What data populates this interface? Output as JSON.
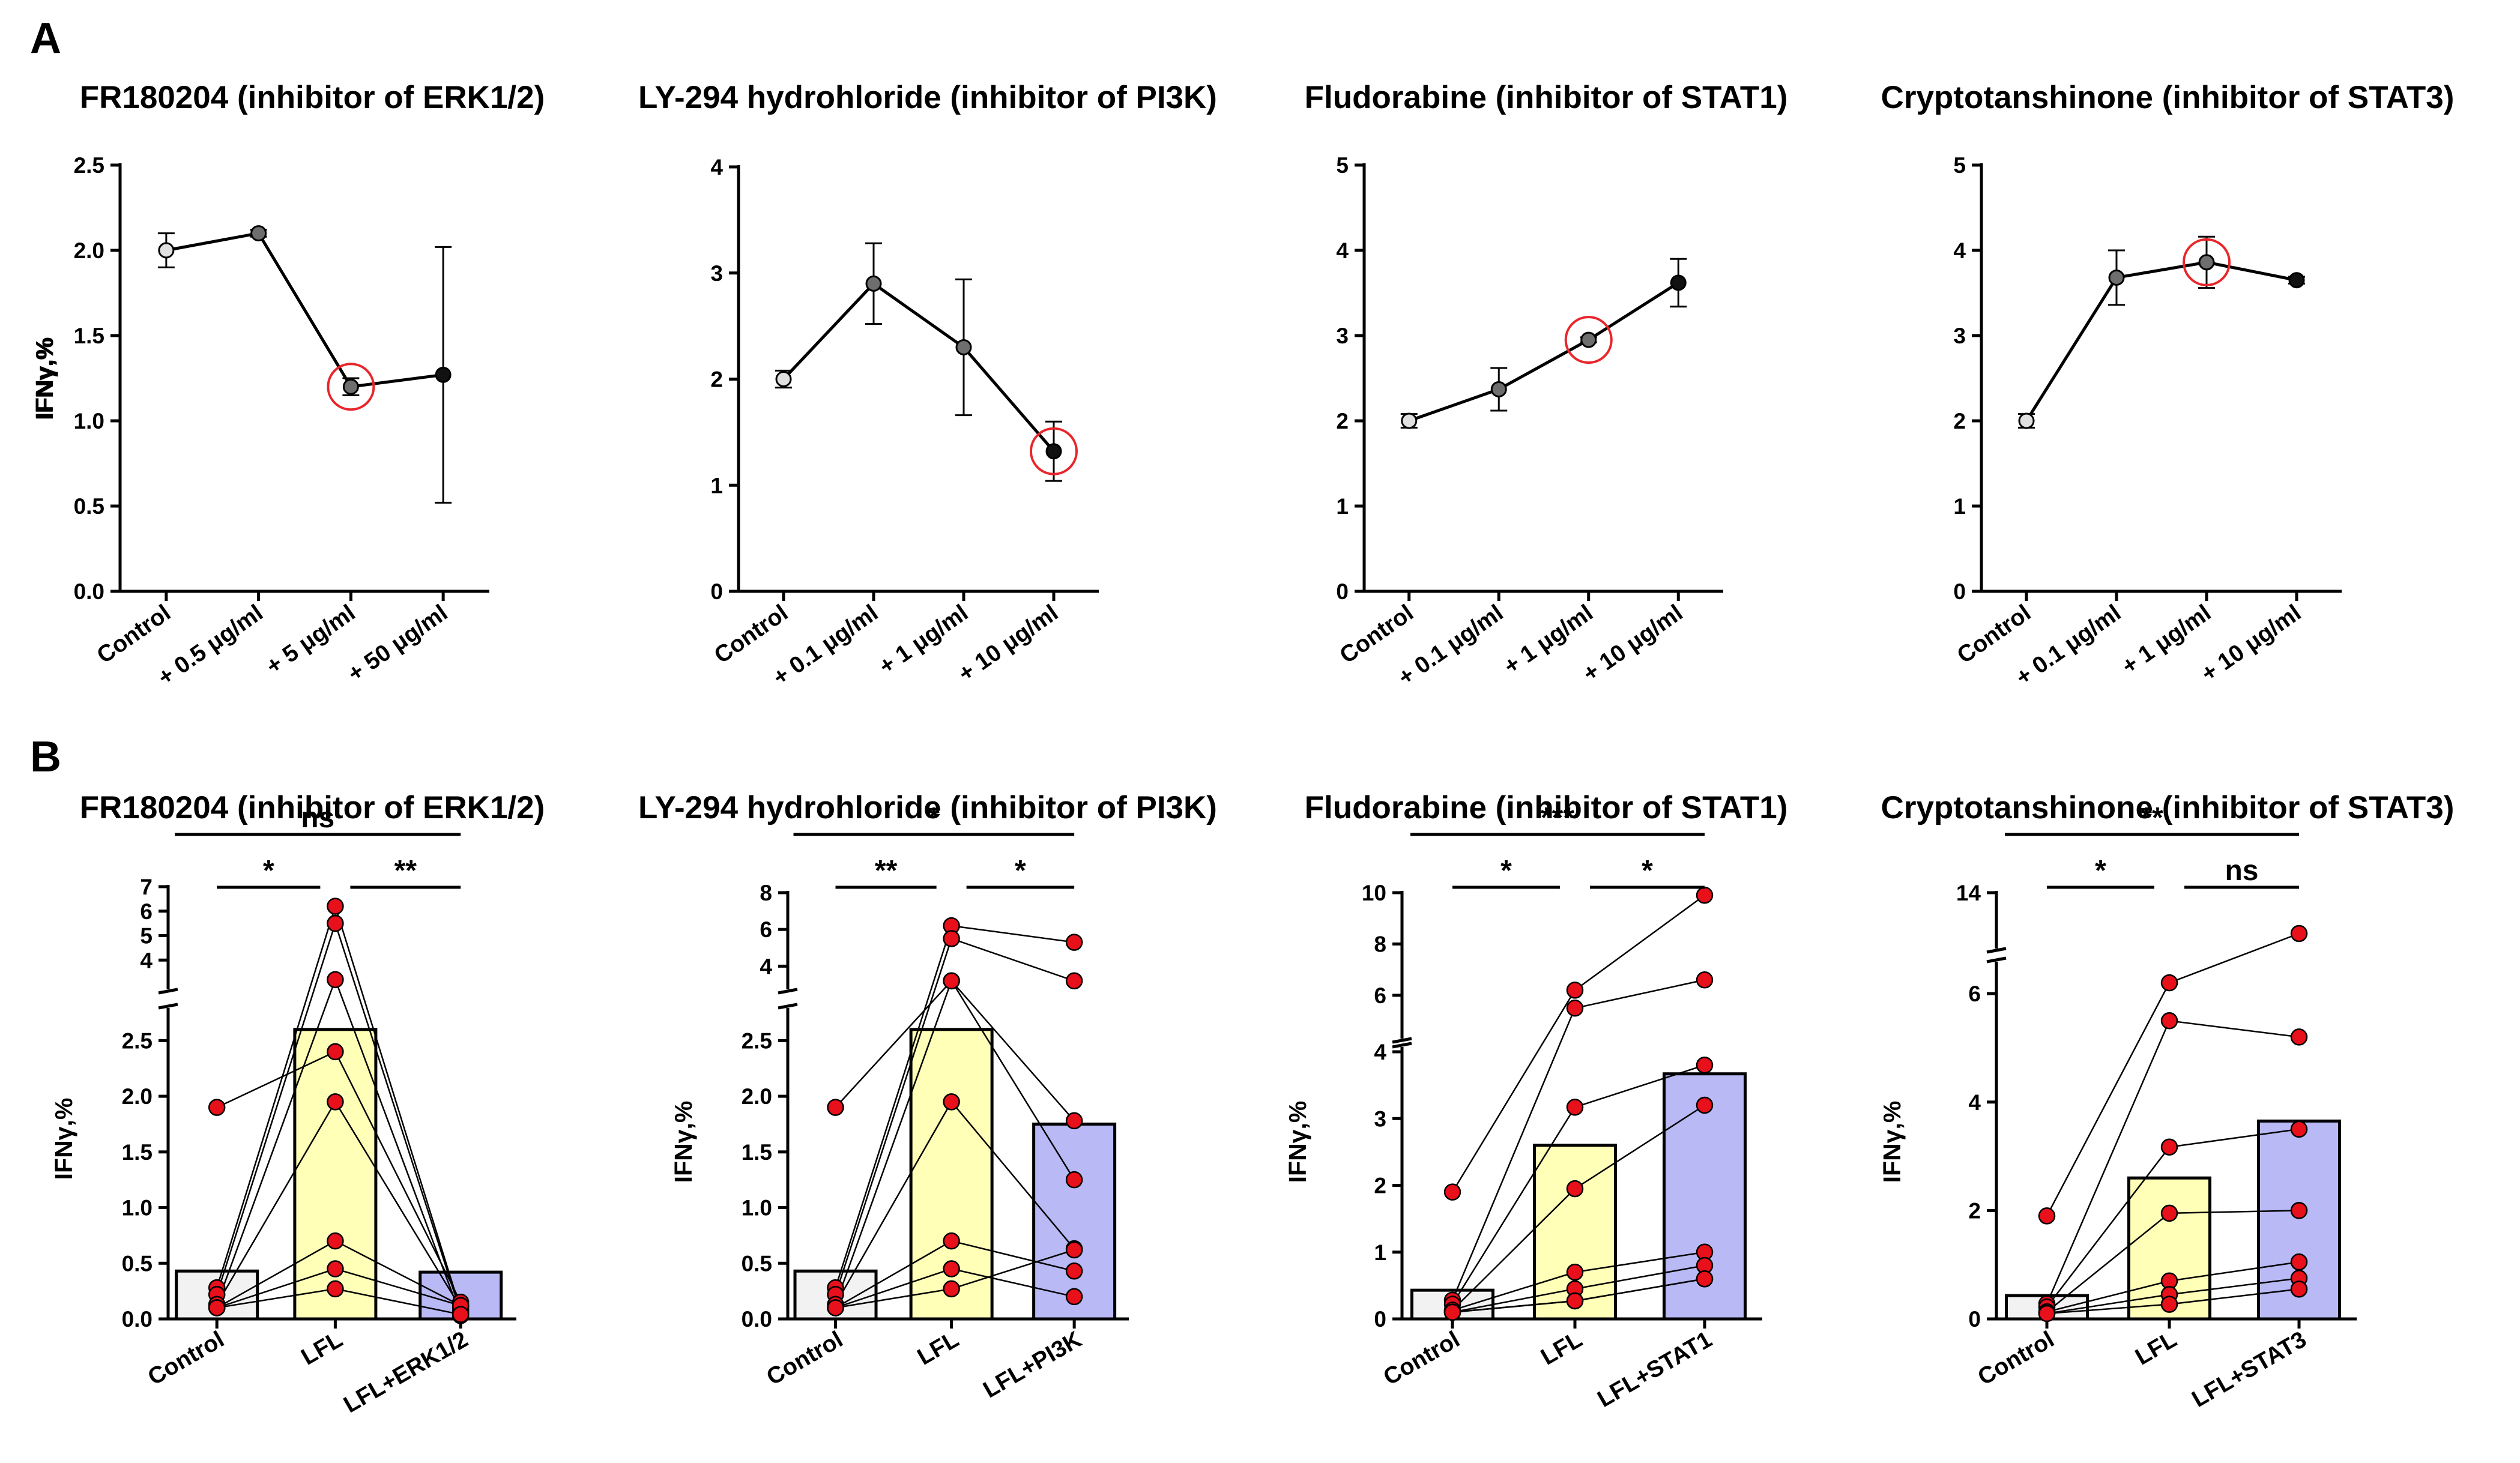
{
  "panel_labels": [
    "A",
    "B"
  ],
  "colors": {
    "marker_control": "#e0e0e0",
    "marker_mid": "#6e6e6e",
    "marker_high": "#111111",
    "highlight_circle": "#e8262b",
    "bar_control": "#f2f2f2",
    "bar_lfl": "#ffffb8",
    "bar_inhibitor": "#b9b9f5",
    "point_red": "#e8101a"
  },
  "chart_data": [
    {
      "type": "line",
      "title": "FR180204 (inhibitor of ERK1/2)",
      "ylabel": "IFNγ,%",
      "ylim": [
        0,
        2.5
      ],
      "yticks": [
        "0.0",
        "0.5",
        "1.0",
        "1.5",
        "2.0",
        "2.5"
      ],
      "categories": [
        "Control",
        "+ 0.5 μg/ml",
        "+ 5 μg/ml",
        "+ 50 μg/ml"
      ],
      "values": [
        2.0,
        2.1,
        1.2,
        1.27
      ],
      "errors": [
        0.1,
        0.02,
        0.05,
        0.75
      ],
      "highlight_index": 2
    },
    {
      "type": "line",
      "title": "LY-294 hydrohloride (inhibitor of PI3K)",
      "ylabel": "IFNγ,%",
      "ylim": [
        0,
        4
      ],
      "yticks": [
        "0",
        "1",
        "2",
        "3",
        "4"
      ],
      "categories": [
        "Control",
        "+ 0.1 μg/ml",
        "+ 1 μg/ml",
        "+ 10 μg/ml"
      ],
      "values": [
        2.0,
        2.9,
        2.3,
        1.32
      ],
      "errors": [
        0.08,
        0.38,
        0.64,
        0.28
      ],
      "highlight_index": 3
    },
    {
      "type": "line",
      "title": "Fludorabine (inhibitor of STAT1)",
      "ylabel": "IFNγ,%",
      "ylim": [
        0,
        5
      ],
      "yticks": [
        "0",
        "1",
        "2",
        "3",
        "4",
        "5"
      ],
      "categories": [
        "Control",
        "+ 0.1 μg/ml",
        "+ 1 μg/ml",
        "+ 10 μg/ml"
      ],
      "values": [
        2.0,
        2.37,
        2.95,
        3.62
      ],
      "errors": [
        0.08,
        0.25,
        0.03,
        0.28
      ],
      "highlight_index": 2
    },
    {
      "type": "line",
      "title": "Cryptotanshinone (inhibitor of STAT3)",
      "ylabel": "IFNγ,%",
      "ylim": [
        0,
        5
      ],
      "yticks": [
        "0",
        "1",
        "2",
        "3",
        "4",
        "5"
      ],
      "categories": [
        "Control",
        "+ 0.1 μg/ml",
        "+ 1 μg/ml",
        "+ 10 μg/ml"
      ],
      "values": [
        2.0,
        3.68,
        3.86,
        3.65
      ],
      "errors": [
        0.08,
        0.32,
        0.3,
        0.04
      ],
      "highlight_index": 2
    },
    {
      "type": "bar",
      "title": "FR180204 (inhibitor of ERK1/2)",
      "ylabel": "IFNγ,%",
      "categories": [
        "Control",
        "LFL",
        "LFL+ERK1/2"
      ],
      "bar_values": [
        0.43,
        2.6,
        0.42
      ],
      "axis_break": {
        "lower": [
          0,
          2.75
        ],
        "upper": [
          3.0,
          7.0
        ]
      },
      "lower_ticks": [
        "0.0",
        "0.5",
        "1.0",
        "1.5",
        "2.0",
        "2.5"
      ],
      "upper_ticks": [
        "4",
        "5",
        "6",
        "7"
      ],
      "points": [
        [
          1.9,
          2.4,
          0.15
        ],
        [
          0.28,
          6.2,
          0.08
        ],
        [
          0.22,
          5.5,
          0.06
        ],
        [
          0.13,
          3.2,
          0.03
        ],
        [
          0.13,
          1.95,
          0.1
        ],
        [
          0.1,
          0.7,
          0.12
        ],
        [
          0.1,
          0.45,
          0.12
        ],
        [
          0.1,
          0.27,
          0.04
        ]
      ],
      "significance": [
        {
          "from": 0,
          "to": 2,
          "label": "ns"
        },
        {
          "from": 0,
          "to": 1,
          "label": "*"
        },
        {
          "from": 1,
          "to": 2,
          "label": "**"
        }
      ]
    },
    {
      "type": "bar",
      "title": "LY-294 hydrohloride (inhibitor of PI3K)",
      "ylabel": "IFNγ,%",
      "categories": [
        "Control",
        "LFL",
        "LFL+PI3K"
      ],
      "bar_values": [
        0.43,
        2.6,
        1.75
      ],
      "axis_break": {
        "lower": [
          0,
          2.75
        ],
        "upper": [
          3.0,
          8.0
        ]
      },
      "lower_ticks": [
        "0.0",
        "0.5",
        "1.0",
        "1.5",
        "2.0",
        "2.5"
      ],
      "upper_ticks": [
        "4",
        "6",
        "8"
      ],
      "points": [
        [
          1.9,
          3.2,
          1.78
        ],
        [
          0.28,
          6.2,
          5.3
        ],
        [
          0.22,
          5.5,
          3.2
        ],
        [
          0.13,
          3.2,
          1.25
        ],
        [
          0.13,
          1.95,
          0.63
        ],
        [
          0.1,
          0.7,
          0.43
        ],
        [
          0.1,
          0.45,
          0.2
        ],
        [
          0.1,
          0.27,
          0.62
        ]
      ],
      "significance": [
        {
          "from": 0,
          "to": 2,
          "label": "*"
        },
        {
          "from": 0,
          "to": 1,
          "label": "**"
        },
        {
          "from": 1,
          "to": 2,
          "label": "*"
        }
      ]
    },
    {
      "type": "bar",
      "title": "Fludorabine (inhibitor of STAT1)",
      "ylabel": "IFNγ,%",
      "categories": [
        "Control",
        "LFL",
        "LFL+STAT1"
      ],
      "bar_values": [
        0.43,
        2.6,
        3.67
      ],
      "axis_break": {
        "lower": [
          0,
          4.0
        ],
        "upper": [
          4.5,
          10.0
        ]
      },
      "lower_ticks": [
        "0",
        "1",
        "2",
        "3",
        "4"
      ],
      "upper_ticks": [
        "6",
        "8",
        "10"
      ],
      "points": [
        [
          1.9,
          6.2,
          9.9
        ],
        [
          0.28,
          5.5,
          6.6
        ],
        [
          0.22,
          3.17,
          3.8
        ],
        [
          0.13,
          1.95,
          3.2
        ],
        [
          0.13,
          0.7,
          1.0
        ],
        [
          0.1,
          0.45,
          0.8
        ],
        [
          0.1,
          0.27,
          0.6
        ],
        [
          0.1,
          0.27,
          0.6
        ]
      ],
      "significance": [
        {
          "from": 0,
          "to": 2,
          "label": "***"
        },
        {
          "from": 0,
          "to": 1,
          "label": "*"
        },
        {
          "from": 1,
          "to": 2,
          "label": "*"
        }
      ]
    },
    {
      "type": "bar",
      "title": "Cryptotanshinone (inhibitor of STAT3)",
      "ylabel": "IFNγ,%",
      "categories": [
        "Control",
        "LFL",
        "LFL+STAT3"
      ],
      "bar_values": [
        0.43,
        2.6,
        3.65
      ],
      "axis_break": {
        "lower": [
          0,
          6.5
        ],
        "upper": [
          12.0,
          14.0
        ]
      },
      "lower_ticks": [
        "0",
        "2",
        "4",
        "6"
      ],
      "upper_ticks": [
        "14"
      ],
      "points": [
        [
          1.9,
          6.2,
          12.4
        ],
        [
          0.28,
          5.5,
          5.2
        ],
        [
          0.22,
          3.17,
          3.5
        ],
        [
          0.13,
          1.95,
          2.0
        ],
        [
          0.13,
          0.7,
          1.05
        ],
        [
          0.1,
          0.45,
          0.75
        ],
        [
          0.1,
          0.27,
          0.55
        ]
      ],
      "significance": [
        {
          "from": 0,
          "to": 2,
          "label": "**"
        },
        {
          "from": 0,
          "to": 1,
          "label": "*"
        },
        {
          "from": 1,
          "to": 2,
          "label": "ns"
        }
      ]
    }
  ]
}
